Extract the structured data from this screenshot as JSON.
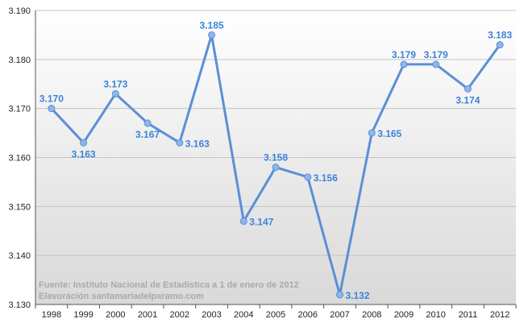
{
  "chart_data": {
    "type": "line",
    "categories": [
      "1998",
      "1999",
      "2000",
      "2001",
      "2002",
      "2003",
      "2004",
      "2005",
      "2006",
      "2007",
      "2008",
      "2009",
      "2010",
      "2011",
      "2012"
    ],
    "values": [
      3170,
      3163,
      3173,
      3167,
      3163,
      3185,
      3147,
      3158,
      3156,
      3132,
      3165,
      3179,
      3179,
      3174,
      3183
    ],
    "data_labels": [
      "3.170",
      "3.163",
      "3.173",
      "3.167",
      "3.163",
      "3.185",
      "3.147",
      "3.158",
      "3.156",
      "3.132",
      "3.165",
      "3.179",
      "3.179",
      "3.174",
      "3.183"
    ],
    "label_position": [
      "above",
      "below",
      "above",
      "below",
      "right",
      "above",
      "right",
      "above",
      "right",
      "right",
      "right",
      "above",
      "above",
      "below",
      "above"
    ],
    "yticks": [
      3130,
      3140,
      3150,
      3160,
      3170,
      3180,
      3190
    ],
    "ytick_labels": [
      "3.130",
      "3.140",
      "3.150",
      "3.160",
      "3.170",
      "3.180",
      "3.190"
    ],
    "ylim": [
      3130,
      3190
    ],
    "grid": true,
    "background": "gradient-gray",
    "colors": {
      "line": "#5b8fd6",
      "marker": "#8fb6ea",
      "label": "#3d84d6",
      "note": "#a9a9a9"
    }
  },
  "notes": {
    "source": "Fuente: Instituto Nacional de Estadística a 1 de enero de 2012",
    "credit": "Elavoración santamariadelparamo.com"
  }
}
